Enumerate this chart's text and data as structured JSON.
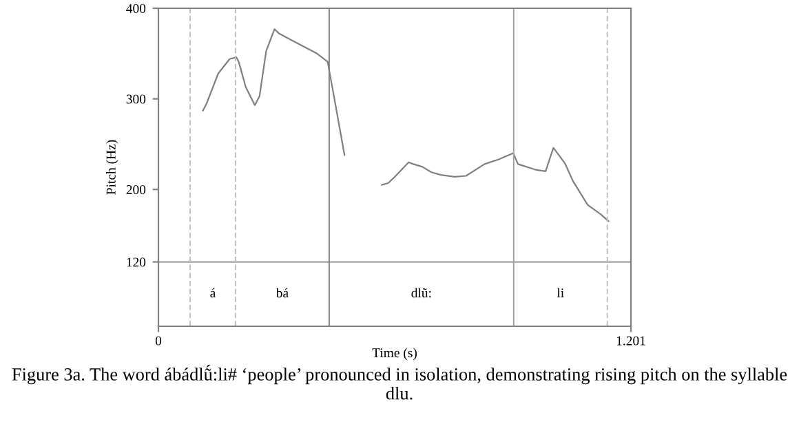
{
  "chart_data": {
    "type": "line",
    "xlabel": "Time (s)",
    "ylabel": "Pitch (Hz)",
    "x": [
      0.113,
      0.1226,
      0.152,
      0.181,
      0.198,
      0.204,
      0.222,
      0.245,
      0.257,
      0.274,
      0.295,
      0.307,
      0.333,
      0.368,
      0.403,
      0.43,
      0.444,
      0.461,
      0.473,
      0.52,
      0.568,
      0.584,
      0.601,
      0.636,
      0.648,
      0.671,
      0.694,
      0.718,
      0.753,
      0.782,
      0.829,
      0.864,
      0.902,
      0.914,
      0.957,
      0.984,
      1.004,
      1.033,
      1.054,
      1.091,
      1.126,
      1.144
    ],
    "series": [
      {
        "color": "#808080",
        "values": [
          287,
          295,
          328,
          344,
          346,
          341,
          313,
          293,
          303,
          353,
          377,
          372,
          366,
          358,
          350,
          341,
          308,
          267,
          238,
          null,
          205,
          207,
          214,
          230,
          228,
          225,
          219,
          216,
          214,
          215,
          228,
          233,
          240,
          228,
          222,
          220,
          246,
          229,
          209,
          183,
          172,
          165
        ]
      }
    ],
    "xlim": [
      0,
      1.201
    ],
    "xticks": [
      0,
      1.201
    ],
    "ylim": [
      49,
      400
    ],
    "yticks": [
      120,
      200,
      300,
      400
    ],
    "grid": false,
    "legend": false,
    "marker": "none",
    "line_style": "solid",
    "ref_lines": [
      {
        "axis": "y",
        "value": 120,
        "color": "#a0a0a0",
        "line_style": "solid"
      },
      {
        "axis": "x",
        "value": 0.0805,
        "color": "#c0c0c0",
        "line_style": "dashed"
      },
      {
        "axis": "x",
        "value": 0.196,
        "color": "#c0c0c0",
        "line_style": "dashed"
      },
      {
        "axis": "x",
        "value": 0.434,
        "color": "#808080",
        "line_style": "solid"
      },
      {
        "axis": "x",
        "value": 0.903,
        "color": "#a0a0a0",
        "line_style": "solid"
      },
      {
        "axis": "x",
        "value": 1.141,
        "color": "#c0c0c0",
        "line_style": "dashed"
      }
    ],
    "annotations": [
      "á",
      "bá",
      "dlũ:",
      "li",
      "Figure 3a. The word ábádlṹ:li# ‘people’ pronounced in isolation, demonstrating rising pitch on the syllable dlu."
    ]
  }
}
